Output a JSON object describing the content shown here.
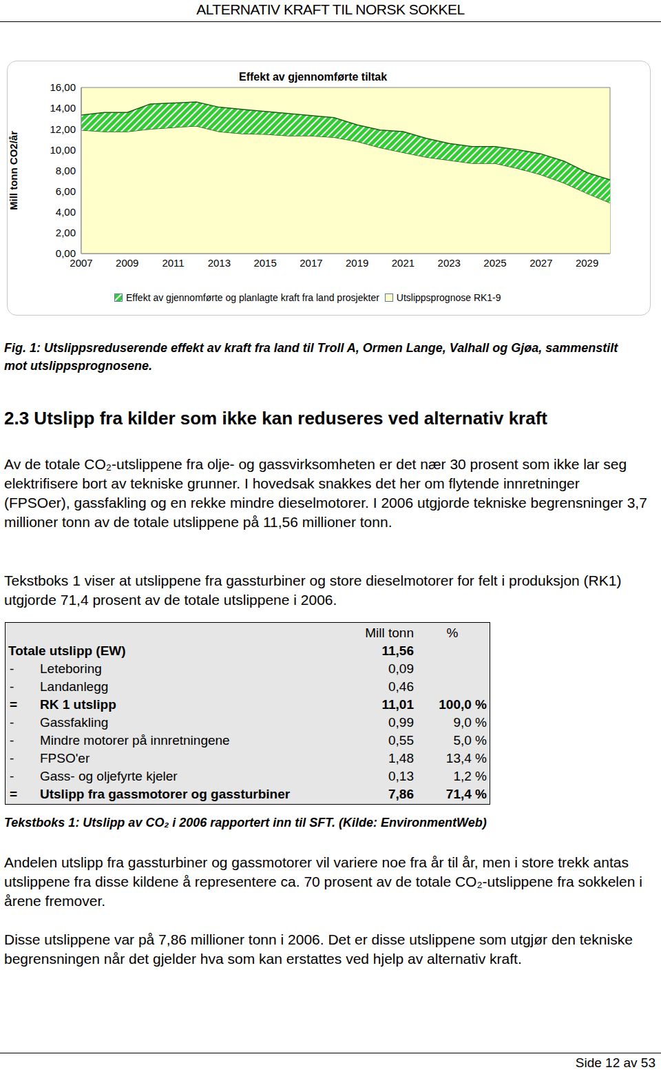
{
  "header": {
    "title": "ALTERNATIV KRAFT TIL NORSK SOKKEL"
  },
  "chart_data": {
    "type": "area",
    "stacked": true,
    "title": "Effekt av gjennomførte tiltak",
    "y_label": "Mill tonn CO2/år",
    "x": [
      2007,
      2008,
      2009,
      2010,
      2011,
      2012,
      2013,
      2014,
      2015,
      2016,
      2017,
      2018,
      2019,
      2020,
      2021,
      2022,
      2023,
      2024,
      2025,
      2026,
      2027,
      2028,
      2029,
      2030
    ],
    "xlim": [
      2007,
      2030
    ],
    "xticks": [
      2007,
      2009,
      2011,
      2013,
      2015,
      2017,
      2019,
      2021,
      2023,
      2025,
      2027,
      2029
    ],
    "ylim": [
      0,
      16
    ],
    "yticks": [
      {
        "value": 0,
        "label": "0,00"
      },
      {
        "value": 2,
        "label": "2,00"
      },
      {
        "value": 4,
        "label": "4,00"
      },
      {
        "value": 6,
        "label": "6,00"
      },
      {
        "value": 8,
        "label": "8,00"
      },
      {
        "value": 10,
        "label": "10,00"
      },
      {
        "value": 12,
        "label": "12,00"
      },
      {
        "value": 14,
        "label": "14,00"
      },
      {
        "value": 16,
        "label": "16,00"
      }
    ],
    "grid": false,
    "legend": "bottom",
    "series": [
      {
        "name": "Effekt av gjennomførte og planlagte kraft fra land prosjekter",
        "color": "#33cc33",
        "values": [
          1.45,
          1.85,
          1.85,
          2.4,
          2.35,
          2.3,
          2.35,
          2.35,
          2.2,
          2.15,
          1.95,
          1.9,
          1.6,
          1.7,
          2.0,
          1.8,
          1.6,
          1.6,
          1.6,
          1.8,
          2.0,
          2.1,
          2.0,
          2.2
        ]
      },
      {
        "name": "Utslippsprognose RK1-9",
        "color": "#ffffcc",
        "values": [
          11.9,
          11.75,
          11.75,
          12.0,
          12.15,
          12.3,
          11.75,
          11.55,
          11.5,
          11.35,
          11.35,
          11.2,
          10.8,
          10.2,
          9.75,
          9.3,
          9.0,
          8.7,
          8.7,
          8.2,
          7.6,
          6.8,
          5.8,
          4.9
        ]
      }
    ]
  },
  "figure_caption": "Fig. 1: Utslippsreduserende effekt av kraft fra land til Troll A, Ormen Lange, Valhall og Gjøa, sammenstilt mot utslippsprognosene.",
  "section_heading": "2.3 Utslipp fra kilder som ikke kan reduseres ved alternativ kraft",
  "paragraphs_before": [
    "Av de totale CO₂-utslippene fra olje- og gassvirksomheten er det nær 30 prosent som ikke lar seg elektrifisere bort av tekniske grunner. I hovedsak snakkes det her om flytende innretninger (FPSOer), gassfakling og en rekke mindre dieselmotorer. I 2006 utgjorde tekniske begrensninger 3,7 millioner tonn av de totale utslippene på 11,56 millioner tonn.",
    "Tekstboks 1 viser at utslippene fra gassturbiner og store dieselmotorer for felt i produksjon (RK1) utgjorde 71,4 prosent av de totale utslippene i 2006."
  ],
  "table": {
    "header": [
      "",
      "",
      "Mill tonn",
      "%"
    ],
    "rows": [
      [
        "",
        "Totale utslipp (EW)",
        "11,56",
        ""
      ],
      [
        "-",
        "Leteboring",
        "0,09",
        ""
      ],
      [
        "-",
        "Landanlegg",
        "0,46",
        ""
      ],
      [
        "=",
        "RK 1 utslipp",
        "11,01",
        "100,0 %"
      ],
      [
        "-",
        "Gassfakling",
        "0,99",
        "9,0 %"
      ],
      [
        "-",
        "Mindre motorer på innretningene",
        "0,55",
        "5,0 %"
      ],
      [
        "-",
        "FPSO'er",
        "1,48",
        "13,4 %"
      ],
      [
        "-",
        "Gass- og oljefyrte kjeler",
        "0,13",
        "1,2 %"
      ],
      [
        "=",
        "Utslipp fra gassmotorer og gassturbiner",
        "7,86",
        "71,4 %"
      ]
    ]
  },
  "table_caption": "Tekstboks 1: Utslipp av CO₂ i 2006 rapportert inn til SFT. (Kilde: EnvironmentWeb)",
  "paragraphs_after": [
    "Andelen utslipp fra gassturbiner og gassmotorer vil variere noe fra år til år, men i store trekk antas utslippene fra disse kildene å representere ca. 70 prosent av de totale CO₂-utslippene fra sokkelen i årene fremover.",
    "Disse utslippene var på 7,86 millioner tonn i 2006. Det er disse utslippene som utgjør den tekniske begrensningen når det gjelder hva som kan erstattes ved hjelp av alternativ kraft."
  ],
  "footer": "Side 12 av 53"
}
